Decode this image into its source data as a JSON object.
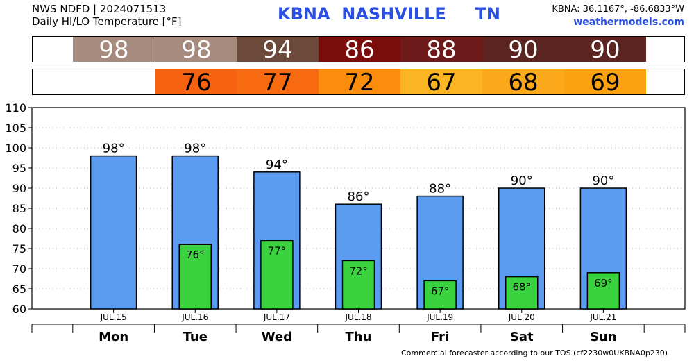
{
  "header": {
    "source_line": "NWS NDFD | 2024071513",
    "product_line": "Daily HI/LO Temperature [°F]",
    "station_title": "KBNA  NASHVILLE     TN",
    "coords": "KBNA: 36.1167°, -86.6833°W",
    "site": "weathermodels.com"
  },
  "hi_strip": {
    "values": [
      "98",
      "98",
      "94",
      "86",
      "88",
      "90",
      "90"
    ],
    "colors": [
      "#a58a7d",
      "#a58a7d",
      "#6b4a3c",
      "#7a0c0c",
      "#6e1a1a",
      "#5c2522",
      "#5c2522"
    ]
  },
  "lo_strip": {
    "values": [
      "",
      "76",
      "77",
      "72",
      "67",
      "68",
      "69"
    ],
    "colors": [
      "#ffffff",
      "#f6620f",
      "#f86a10",
      "#fb8c0c",
      "#fbb522",
      "#fba81a",
      "#fba110"
    ]
  },
  "chart_data": {
    "type": "bar",
    "categories": [
      "Mon",
      "Tue",
      "Wed",
      "Thu",
      "Fri",
      "Sat",
      "Sun"
    ],
    "dates": [
      "JUL.15",
      "JUL.16",
      "JUL.17",
      "JUL.18",
      "JUL.19",
      "JUL.20",
      "JUL.21"
    ],
    "series": [
      {
        "name": "HI",
        "values": [
          98,
          98,
          94,
          86,
          88,
          90,
          90
        ],
        "labels": [
          "98°",
          "98°",
          "94°",
          "86°",
          "88°",
          "90°",
          "90°"
        ],
        "color": "#5b9cf0"
      },
      {
        "name": "LO",
        "values": [
          null,
          76,
          77,
          72,
          67,
          68,
          69
        ],
        "labels": [
          "",
          "76°",
          "77°",
          "72°",
          "67°",
          "68°",
          "69°"
        ],
        "color": "#3ad23f"
      }
    ],
    "yticks": [
      "60",
      "65",
      "70",
      "75",
      "80",
      "85",
      "90",
      "95",
      "100",
      "105",
      "110"
    ],
    "ylim": [
      60,
      110
    ],
    "grid": true
  },
  "footer": "Commercial forecaster according to our TOS (cf2230w0UKBNA0p230)"
}
